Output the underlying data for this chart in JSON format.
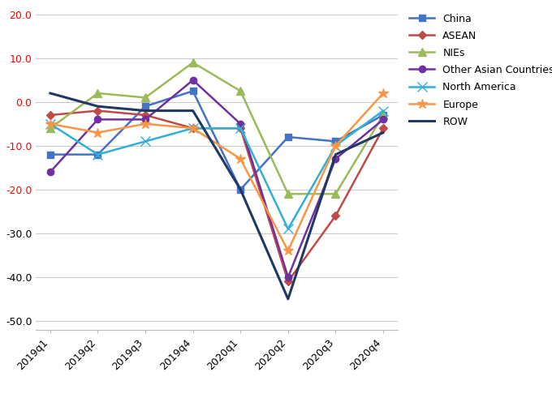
{
  "quarters": [
    "2019q1",
    "2019q2",
    "2019q3",
    "2019q4",
    "2020q1",
    "2020q2",
    "2020q3",
    "2020q4"
  ],
  "series": [
    {
      "name": "China",
      "values": [
        -12,
        -12,
        -1,
        2.5,
        -20,
        -8,
        -9,
        -3
      ],
      "color": "#4472C4",
      "marker": "s",
      "markersize": 6,
      "linewidth": 1.8
    },
    {
      "name": "ASEAN",
      "values": [
        -3,
        -2,
        -3,
        -6,
        -6,
        -41,
        -26,
        -6
      ],
      "color": "#BE4B48",
      "marker": "D",
      "markersize": 5,
      "linewidth": 1.8
    },
    {
      "name": "NIEs",
      "values": [
        -6,
        2,
        1,
        9,
        2.5,
        -21,
        -21,
        -3
      ],
      "color": "#9BBB59",
      "marker": "^",
      "markersize": 7,
      "linewidth": 1.8
    },
    {
      "name": "Other Asian Countries",
      "values": [
        -16,
        -4,
        -4,
        5,
        -5,
        -40,
        -13,
        -4
      ],
      "color": "#7030A0",
      "marker": "o",
      "markersize": 6,
      "linewidth": 1.8
    },
    {
      "name": "North America",
      "values": [
        -5,
        -12,
        -9,
        -6,
        -6,
        -29,
        -10,
        -2
      ],
      "color": "#31B0D5",
      "marker": "x",
      "markersize": 8,
      "linewidth": 1.8
    },
    {
      "name": "Europe",
      "values": [
        -5,
        -7,
        -5,
        -6,
        -13,
        -34,
        -10,
        2
      ],
      "color": "#F79646",
      "marker": "*",
      "markersize": 9,
      "linewidth": 1.8
    },
    {
      "name": "ROW",
      "values": [
        2,
        -1,
        -2,
        -2,
        -20,
        -45,
        -12,
        -7
      ],
      "color": "#1F3864",
      "marker": null,
      "markersize": 0,
      "linewidth": 2.2
    }
  ],
  "ylim": [
    -52,
    22
  ],
  "yticks": [
    -50,
    -40,
    -30,
    -20,
    -10,
    0,
    10,
    20
  ],
  "ytick_labels": [
    "-50.0",
    "-40.0",
    "-30.0",
    "-20.0",
    "-10.0",
    "0.0",
    "10.0",
    "20.0"
  ],
  "ytick_colors": [
    "red",
    "red",
    "red",
    "red",
    "red",
    "black",
    "black",
    "black"
  ],
  "grid_color": "#CCCCCC",
  "background_color": "#FFFFFF"
}
